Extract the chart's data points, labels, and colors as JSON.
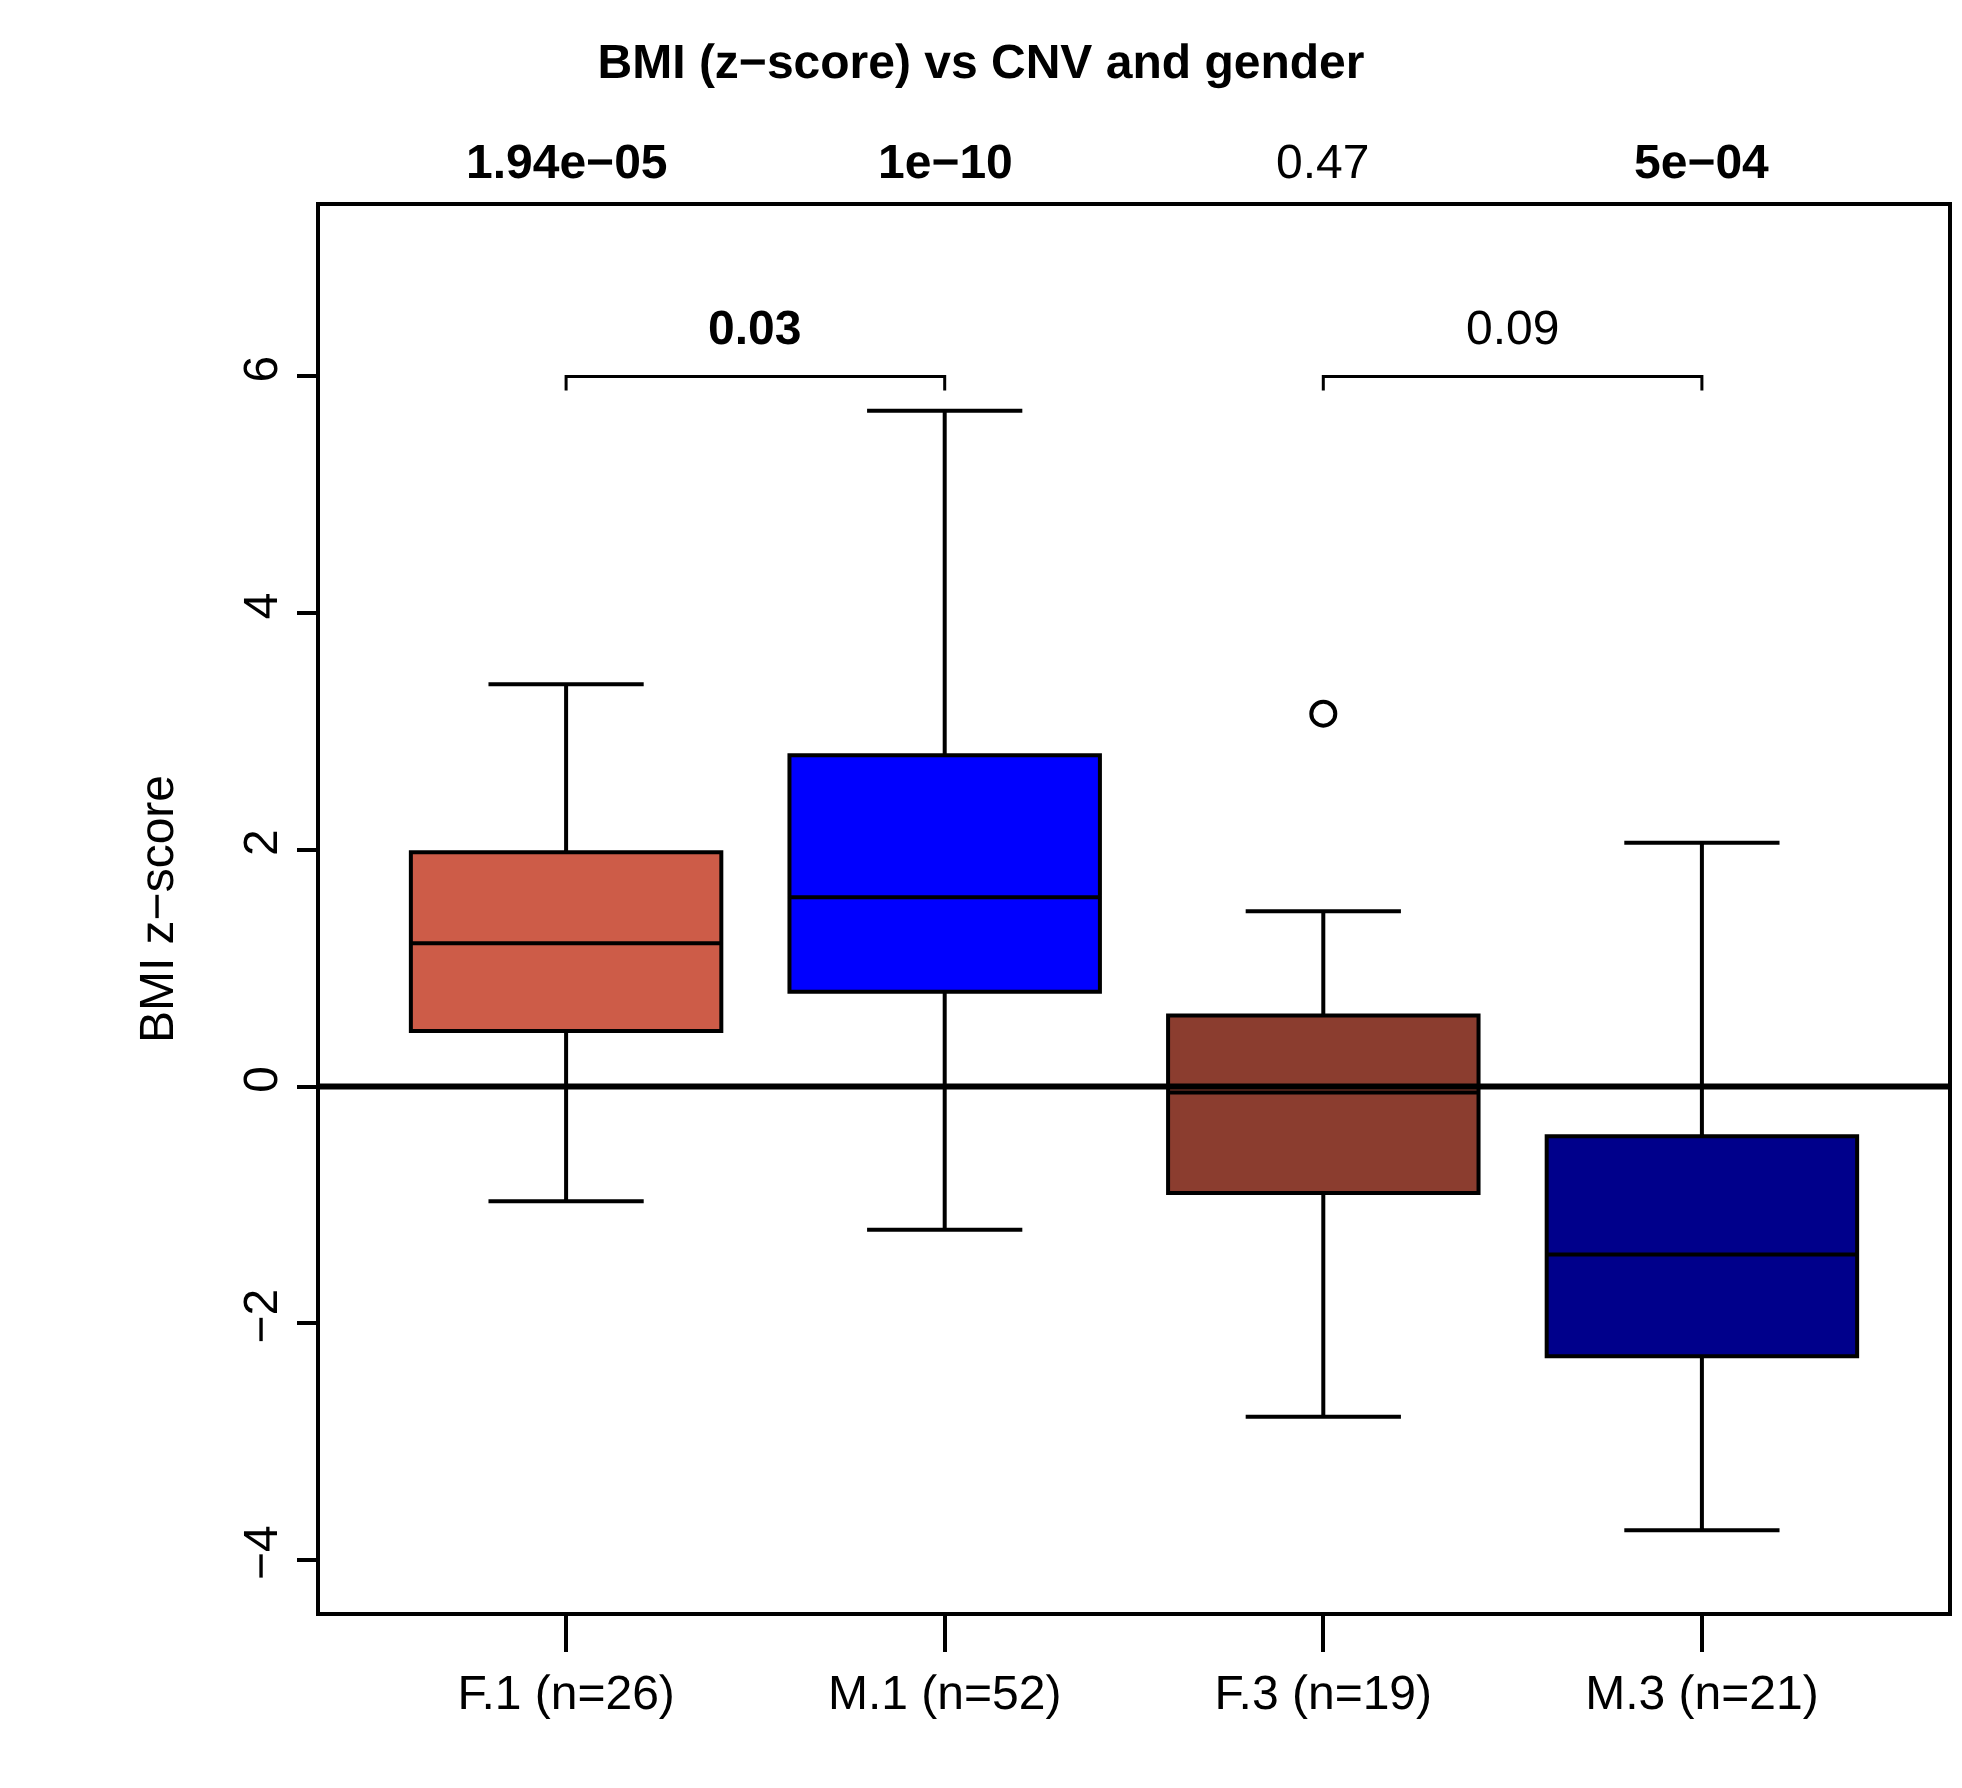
{
  "chart_data": {
    "type": "box",
    "title": "BMI (z−score) vs CNV and gender",
    "ylabel": "BMI z−score",
    "categories": [
      "F.1 (n=26)",
      "M.1 (n=52)",
      "F.3 (n=19)",
      "M.3 (n=21)"
    ],
    "colors": [
      "#cd5c48",
      "#0000ff",
      "#8b3d2f",
      "#00008b"
    ],
    "boxes": [
      {
        "low": -0.97,
        "q1": 0.47,
        "median": 1.21,
        "q3": 1.98,
        "high": 3.4
      },
      {
        "low": -1.21,
        "q1": 0.8,
        "median": 1.6,
        "q3": 2.8,
        "high": 5.71
      },
      {
        "low": -2.79,
        "q1": -0.9,
        "median": -0.05,
        "q3": 0.6,
        "high": 1.48,
        "outliers": [
          3.15
        ]
      },
      {
        "low": -3.75,
        "q1": -2.28,
        "median": -1.42,
        "q3": -0.42,
        "high": 2.06
      }
    ],
    "annotations": [
      "1.94e−05",
      "1e−10",
      "0.47",
      "5e−04",
      "0.03",
      "0.09"
    ],
    "ref_lines": [
      {
        "axis": "y",
        "value": 0,
        "color": "#000000",
        "line_style": "solid"
      }
    ],
    "ylim": [
      -4.44,
      7.44
    ],
    "yticks": [
      -4,
      -2,
      0,
      2,
      4,
      6
    ]
  }
}
